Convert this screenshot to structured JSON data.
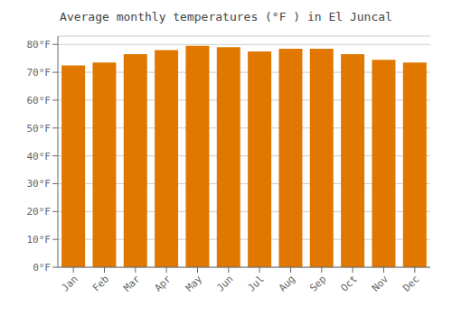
{
  "chart_data": {
    "type": "bar",
    "title": "Average monthly temperatures (°F ) in El Juncal",
    "categories": [
      "Jan",
      "Feb",
      "Mar",
      "Apr",
      "May",
      "Jun",
      "Jul",
      "Aug",
      "Sep",
      "Oct",
      "Nov",
      "Dec"
    ],
    "values": [
      72.5,
      73.5,
      76.5,
      78.0,
      79.5,
      79.0,
      77.5,
      78.5,
      78.5,
      76.5,
      74.5,
      73.5
    ],
    "color": "#E07800",
    "ylim": [
      0,
      83
    ],
    "yticks": [
      {
        "value": 0,
        "label": "0°F"
      },
      {
        "value": 10,
        "label": "10°F"
      },
      {
        "value": 20,
        "label": "20°F"
      },
      {
        "value": 30,
        "label": "30°F"
      },
      {
        "value": 40,
        "label": "40°F"
      },
      {
        "value": 50,
        "label": "50°F"
      },
      {
        "value": 60,
        "label": "60°F"
      },
      {
        "value": 70,
        "label": "70°F"
      },
      {
        "value": 80,
        "label": "80°F"
      }
    ],
    "grid": true
  }
}
